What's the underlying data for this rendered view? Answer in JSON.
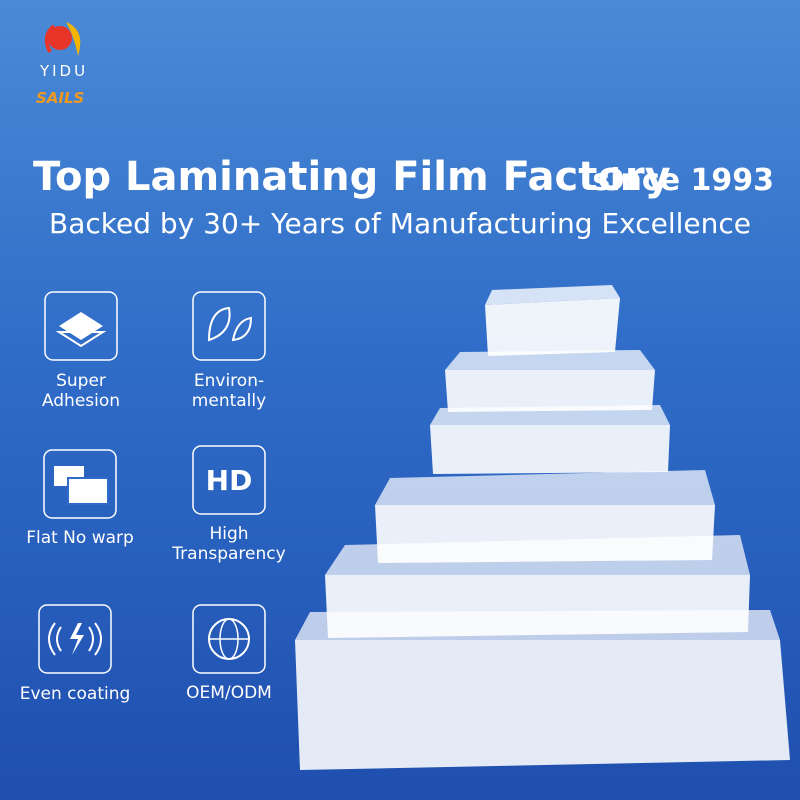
{
  "brand": {
    "name": "YIDU",
    "sub": "SAILS"
  },
  "header": {
    "title": "Top Laminating Film Factory",
    "since": "since 1993",
    "subtitle": "Backed by 30+ Years of Manufacturing Excellence"
  },
  "features": [
    {
      "lines": [
        "Super",
        "Adhesion"
      ]
    },
    {
      "lines": [
        "Environ-",
        "mentally"
      ]
    },
    {
      "lines": [
        "Flat No warp"
      ]
    },
    {
      "icon_text": "HD",
      "lines": [
        "High",
        "Transparency"
      ]
    },
    {
      "lines": [
        "Even coating"
      ]
    },
    {
      "lines": [
        "OEM/ODM"
      ]
    }
  ]
}
